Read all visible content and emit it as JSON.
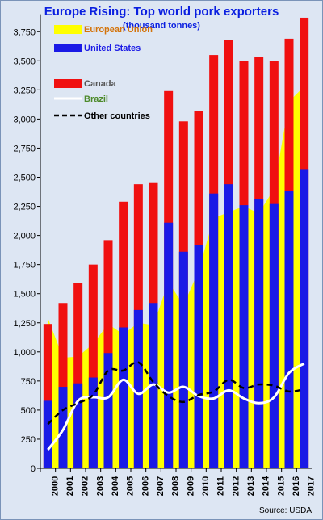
{
  "title": "Europe Rising: Top world pork exporters",
  "subtitle": "(thousand tonnes)",
  "source": "Source: USDA",
  "colors": {
    "background": "#dde6f3",
    "title": "#0a1fe0",
    "eu_fill": "#ffff00",
    "us_bar": "#1a1ae6",
    "canada_bar": "#f01010",
    "brazil_line": "#ffffff",
    "other_line": "#000000",
    "eu_legend_text": "#d4730a",
    "us_legend_text": "#1a1ae6",
    "canada_legend_text": "#555555",
    "brazil_legend_text": "#4d8a2a",
    "other_legend_text": "#000000"
  },
  "chart_data": {
    "type": "bar",
    "title": "Europe Rising: Top world pork exporters",
    "subtitle": "(thousand tonnes)",
    "categories": [
      "2000",
      "2001",
      "2002",
      "2003",
      "2004",
      "2005",
      "2006",
      "2007",
      "2008",
      "2009",
      "2010",
      "2011",
      "2012",
      "2013",
      "2014",
      "2015",
      "2016",
      "2017"
    ],
    "ylim": [
      0,
      3900
    ],
    "yticks": [
      0,
      250,
      500,
      750,
      1000,
      1250,
      1500,
      1750,
      2000,
      2250,
      2500,
      2750,
      3000,
      3250,
      3500,
      3750
    ],
    "ytick_labels": [
      "0",
      "250",
      "500",
      "750",
      "1,000",
      "1,250",
      "1,500",
      "1,750",
      "2,000",
      "2,250",
      "2,500",
      "2,750",
      "3,000",
      "3,250",
      "3,500",
      "3,750"
    ],
    "legend_position": "top-left",
    "grid": false,
    "series": [
      {
        "name": "European Union",
        "kind": "area",
        "values": [
          1290,
          950,
          960,
          1070,
          1240,
          1150,
          1250,
          1230,
          1600,
          1400,
          1700,
          2150,
          2200,
          2250,
          2190,
          2400,
          3150,
          3280
        ]
      },
      {
        "name": "United States",
        "kind": "bar",
        "values": [
          580,
          700,
          730,
          780,
          990,
          1210,
          1360,
          1420,
          2110,
          1860,
          1920,
          2360,
          2440,
          2260,
          2310,
          2270,
          2380,
          2570
        ]
      },
      {
        "name": "Canada",
        "kind": "bar",
        "values": [
          1240,
          1420,
          1590,
          1750,
          1960,
          2290,
          2440,
          2450,
          3240,
          2980,
          3070,
          3550,
          3680,
          3500,
          3530,
          3500,
          3690,
          3870
        ]
      },
      {
        "name": "Brazil",
        "kind": "line",
        "values": [
          160,
          330,
          580,
          610,
          610,
          760,
          640,
          720,
          650,
          700,
          620,
          600,
          670,
          600,
          560,
          610,
          820,
          900
        ]
      },
      {
        "name": "Other countries",
        "kind": "line",
        "values": [
          380,
          500,
          560,
          630,
          840,
          840,
          910,
          740,
          620,
          570,
          630,
          660,
          760,
          690,
          720,
          710,
          660,
          680
        ]
      }
    ]
  }
}
